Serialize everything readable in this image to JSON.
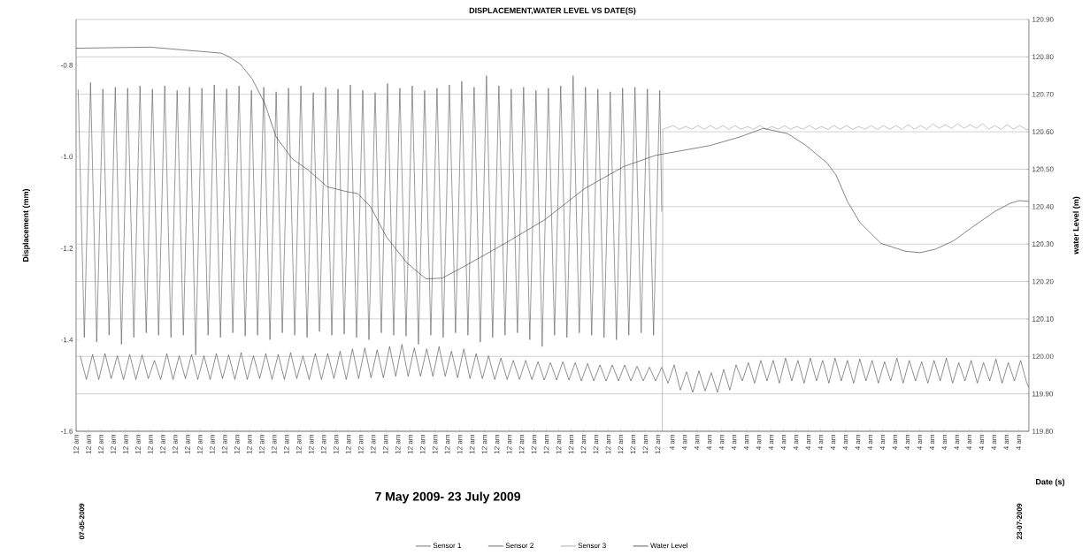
{
  "chart_data": {
    "type": "line",
    "title": "DISPLACEMENT,WATER LEVEL VS DATE(S)",
    "xlabel": "Date (s)",
    "ylabel": "Displacement (mm)",
    "y2label": "water Level (m)",
    "annotations": [
      "07-05-2009",
      "7 May 2009- 23 July 2009",
      "23-07-2009"
    ],
    "xlim": [
      "2009-05-07T00:00",
      "2009-07-23T00:00"
    ],
    "xticks": [
      {
        "value": "2009-05-07T00:00",
        "label": "12 am"
      },
      {
        "value": "2009-05-08T00:00",
        "label": "12 am"
      },
      {
        "value": "2009-05-09T00:00",
        "label": "12 am"
      },
      {
        "value": "2009-05-10T00:00",
        "label": "12 am"
      },
      {
        "value": "2009-05-11T00:00",
        "label": "12 am"
      },
      {
        "value": "2009-05-12T00:00",
        "label": "12 am"
      },
      {
        "value": "2009-05-13T00:00",
        "label": "12 am"
      },
      {
        "value": "2009-05-14T00:00",
        "label": "12 am"
      },
      {
        "value": "2009-05-15T00:00",
        "label": "12 am"
      },
      {
        "value": "2009-05-16T00:00",
        "label": "12 am"
      },
      {
        "value": "2009-05-17T00:00",
        "label": "12 am"
      },
      {
        "value": "2009-05-18T00:00",
        "label": "12 am"
      },
      {
        "value": "2009-05-19T00:00",
        "label": "12 am"
      },
      {
        "value": "2009-05-20T00:00",
        "label": "12 am"
      },
      {
        "value": "2009-05-21T00:00",
        "label": "12 am"
      },
      {
        "value": "2009-05-22T00:00",
        "label": "12 am"
      },
      {
        "value": "2009-05-23T00:00",
        "label": "12 am"
      },
      {
        "value": "2009-05-24T00:00",
        "label": "12 am"
      },
      {
        "value": "2009-05-25T00:00",
        "label": "12 am"
      },
      {
        "value": "2009-05-26T00:00",
        "label": "12 am"
      },
      {
        "value": "2009-05-27T00:00",
        "label": "12 am"
      },
      {
        "value": "2009-05-28T00:00",
        "label": "12 am"
      },
      {
        "value": "2009-05-29T00:00",
        "label": "12 am"
      },
      {
        "value": "2009-05-30T00:00",
        "label": "12 am"
      },
      {
        "value": "2009-05-31T00:00",
        "label": "12 am"
      },
      {
        "value": "2009-06-01T00:00",
        "label": "12 am"
      },
      {
        "value": "2009-06-02T00:00",
        "label": "12 am"
      },
      {
        "value": "2009-06-03T00:00",
        "label": "12 am"
      },
      {
        "value": "2009-06-04T00:00",
        "label": "12 am"
      },
      {
        "value": "2009-06-05T00:00",
        "label": "12 am"
      },
      {
        "value": "2009-06-06T00:00",
        "label": "12 am"
      },
      {
        "value": "2009-06-07T00:00",
        "label": "12 am"
      },
      {
        "value": "2009-06-08T00:00",
        "label": "12 am"
      },
      {
        "value": "2009-06-09T00:00",
        "label": "12 am"
      },
      {
        "value": "2009-06-10T00:00",
        "label": "12 am"
      },
      {
        "value": "2009-06-11T00:00",
        "label": "12 am"
      },
      {
        "value": "2009-06-12T00:00",
        "label": "12 am"
      },
      {
        "value": "2009-06-13T00:00",
        "label": "12 am"
      },
      {
        "value": "2009-06-14T00:00",
        "label": "12 am"
      },
      {
        "value": "2009-06-15T00:00",
        "label": "12 am"
      },
      {
        "value": "2009-06-16T00:00",
        "label": "12 am"
      },
      {
        "value": "2009-06-17T00:00",
        "label": "12 am"
      },
      {
        "value": "2009-06-18T00:00",
        "label": "12 am"
      },
      {
        "value": "2009-06-19T00:00",
        "label": "12 am"
      },
      {
        "value": "2009-06-20T00:00",
        "label": "12 am"
      },
      {
        "value": "2009-06-21T00:00",
        "label": "12 am"
      },
      {
        "value": "2009-06-22T00:00",
        "label": "12 am"
      },
      {
        "value": "2009-06-23T00:00",
        "label": "12 am"
      },
      {
        "value": "2009-06-24T04:00",
        "label": "4 am"
      },
      {
        "value": "2009-06-25T04:00",
        "label": "4 am"
      },
      {
        "value": "2009-06-26T04:00",
        "label": "4 am"
      },
      {
        "value": "2009-06-27T04:00",
        "label": "4 am"
      },
      {
        "value": "2009-06-28T04:00",
        "label": "4 am"
      },
      {
        "value": "2009-06-29T04:00",
        "label": "4 am"
      },
      {
        "value": "2009-06-30T04:00",
        "label": "4 am"
      },
      {
        "value": "2009-07-01T04:00",
        "label": "4 am"
      },
      {
        "value": "2009-07-02T04:00",
        "label": "4 am"
      },
      {
        "value": "2009-07-03T04:00",
        "label": "4 am"
      },
      {
        "value": "2009-07-04T04:00",
        "label": "4 am"
      },
      {
        "value": "2009-07-05T04:00",
        "label": "4 am"
      },
      {
        "value": "2009-07-06T04:00",
        "label": "4 am"
      },
      {
        "value": "2009-07-07T04:00",
        "label": "4 am"
      },
      {
        "value": "2009-07-08T04:00",
        "label": "4 am"
      },
      {
        "value": "2009-07-09T04:00",
        "label": "4 am"
      },
      {
        "value": "2009-07-10T04:00",
        "label": "4 am"
      },
      {
        "value": "2009-07-11T04:00",
        "label": "4 am"
      },
      {
        "value": "2009-07-12T04:00",
        "label": "4 am"
      },
      {
        "value": "2009-07-13T04:00",
        "label": "4 am"
      },
      {
        "value": "2009-07-14T04:00",
        "label": "4 am"
      },
      {
        "value": "2009-07-15T04:00",
        "label": "4 am"
      },
      {
        "value": "2009-07-16T04:00",
        "label": "4 am"
      },
      {
        "value": "2009-07-17T04:00",
        "label": "4 am"
      },
      {
        "value": "2009-07-18T04:00",
        "label": "4 am"
      },
      {
        "value": "2009-07-19T04:00",
        "label": "4 am"
      },
      {
        "value": "2009-07-20T04:00",
        "label": "4 am"
      },
      {
        "value": "2009-07-21T04:00",
        "label": "4 am"
      },
      {
        "value": "2009-07-22T04:00",
        "label": "4 am"
      }
    ],
    "ylim": [
      -1.6,
      -0.7
    ],
    "yticks": [
      -0.8,
      {
        "value": -1.0,
        "label": "-1.0"
      },
      -1.2,
      -1.4,
      -1.6
    ],
    "y2lim": [
      119.8,
      120.9
    ],
    "y2ticks": [
      {
        "value": 119.8,
        "label": "119.80"
      },
      {
        "value": 119.9,
        "label": "119.90"
      },
      {
        "value": 120.0,
        "label": "120.00"
      },
      {
        "value": 120.1,
        "label": "120.10"
      },
      {
        "value": 120.2,
        "label": "120.20"
      },
      {
        "value": 120.3,
        "label": "120.30"
      },
      {
        "value": 120.4,
        "label": "120.40"
      },
      {
        "value": 120.5,
        "label": "120.50"
      },
      {
        "value": 120.6,
        "label": "120.60"
      },
      {
        "value": 120.7,
        "label": "120.70"
      },
      {
        "value": 120.8,
        "label": "120.80"
      },
      {
        "value": 120.9,
        "label": "120.90"
      }
    ],
    "grid": "y2",
    "legend": "bottom",
    "marker": "none",
    "line_style": "solid",
    "series": [
      {
        "name": "Sensor 1",
        "color": "#555555",
        "x": [
          "2009-05-07T04:00",
          "2009-05-07T16:00",
          "2009-05-08T04:00",
          "2009-05-08T16:00",
          "2009-05-09T04:00",
          "2009-05-09T16:00",
          "2009-05-10T04:00",
          "2009-05-10T16:00",
          "2009-05-11T04:00",
          "2009-05-11T16:00",
          "2009-05-12T04:00",
          "2009-05-12T16:00",
          "2009-05-13T04:00",
          "2009-05-13T16:00",
          "2009-05-14T04:00",
          "2009-05-14T16:00",
          "2009-05-15T04:00",
          "2009-05-15T16:00",
          "2009-05-16T04:00",
          "2009-05-16T16:00",
          "2009-05-17T04:00",
          "2009-05-17T16:00",
          "2009-05-18T04:00",
          "2009-05-18T16:00",
          "2009-05-19T04:00",
          "2009-05-19T16:00",
          "2009-05-20T04:00",
          "2009-05-20T16:00",
          "2009-05-21T04:00",
          "2009-05-21T16:00",
          "2009-05-22T04:00",
          "2009-05-22T16:00",
          "2009-05-23T04:00",
          "2009-05-23T16:00",
          "2009-05-24T04:00",
          "2009-05-24T16:00",
          "2009-05-25T04:00",
          "2009-05-25T16:00",
          "2009-05-26T04:00",
          "2009-05-26T16:00",
          "2009-05-27T04:00",
          "2009-05-27T16:00",
          "2009-05-28T04:00",
          "2009-05-28T16:00",
          "2009-05-29T04:00",
          "2009-05-29T16:00",
          "2009-05-30T04:00",
          "2009-05-30T16:00",
          "2009-05-31T04:00",
          "2009-05-31T16:00",
          "2009-06-01T04:00",
          "2009-06-01T16:00",
          "2009-06-02T04:00",
          "2009-06-02T16:00",
          "2009-06-03T04:00",
          "2009-06-03T16:00",
          "2009-06-04T04:00",
          "2009-06-04T16:00",
          "2009-06-05T04:00",
          "2009-06-05T16:00",
          "2009-06-06T04:00",
          "2009-06-06T16:00",
          "2009-06-07T04:00",
          "2009-06-07T16:00",
          "2009-06-08T04:00",
          "2009-06-08T16:00",
          "2009-06-09T04:00",
          "2009-06-09T16:00",
          "2009-06-10T04:00",
          "2009-06-10T16:00",
          "2009-06-11T04:00",
          "2009-06-11T16:00",
          "2009-06-12T04:00",
          "2009-06-12T16:00",
          "2009-06-13T04:00",
          "2009-06-13T16:00",
          "2009-06-14T04:00",
          "2009-06-14T16:00",
          "2009-06-15T04:00",
          "2009-06-15T16:00",
          "2009-06-16T04:00",
          "2009-06-16T16:00",
          "2009-06-17T04:00",
          "2009-06-17T16:00",
          "2009-06-18T04:00",
          "2009-06-18T16:00",
          "2009-06-19T04:00",
          "2009-06-19T16:00",
          "2009-06-20T04:00",
          "2009-06-20T16:00",
          "2009-06-21T04:00",
          "2009-06-21T16:00",
          "2009-06-22T04:00",
          "2009-06-22T16:00",
          "2009-06-23T04:00",
          "2009-06-23T08:00"
        ],
        "values": [
          -0.853,
          -1.395,
          -0.838,
          -1.405,
          -0.852,
          -1.39,
          -0.848,
          -1.41,
          -0.85,
          -1.395,
          -0.845,
          -1.385,
          -0.852,
          -1.39,
          -0.845,
          -1.395,
          -0.855,
          -1.39,
          -0.848,
          -1.433,
          -0.85,
          -1.39,
          -0.843,
          -1.395,
          -0.852,
          -1.385,
          -0.845,
          -1.392,
          -0.855,
          -1.39,
          -0.848,
          -1.4,
          -0.858,
          -1.385,
          -0.85,
          -1.39,
          -0.845,
          -1.395,
          -0.86,
          -1.382,
          -0.848,
          -1.39,
          -0.852,
          -1.388,
          -0.843,
          -1.395,
          -0.855,
          -1.4,
          -0.86,
          -1.385,
          -0.84,
          -1.39,
          -0.85,
          -1.392,
          -0.845,
          -1.41,
          -0.855,
          -1.39,
          -0.85,
          -1.395,
          -0.843,
          -1.385,
          -0.835,
          -1.39,
          -0.848,
          -1.405,
          -0.823,
          -1.395,
          -0.845,
          -1.39,
          -0.852,
          -1.385,
          -0.848,
          -1.4,
          -0.855,
          -1.415,
          -0.85,
          -1.39,
          -0.845,
          -1.395,
          -0.823,
          -1.385,
          -0.848,
          -1.39,
          -0.852,
          -1.395,
          -0.858,
          -1.4,
          -0.85,
          -1.39,
          -0.848,
          -1.385,
          -0.852,
          -1.39,
          -0.855,
          -1.12
        ]
      },
      {
        "name": "Sensor 2",
        "color": "#444444",
        "x": [
          "2009-05-07T08:00",
          "2009-05-07T20:00",
          "2009-05-08T08:00",
          "2009-05-08T20:00",
          "2009-05-09T08:00",
          "2009-05-09T20:00",
          "2009-05-10T08:00",
          "2009-05-10T20:00",
          "2009-05-11T08:00",
          "2009-05-11T20:00",
          "2009-05-12T08:00",
          "2009-05-12T20:00",
          "2009-05-13T08:00",
          "2009-05-13T20:00",
          "2009-05-14T08:00",
          "2009-05-14T20:00",
          "2009-05-15T08:00",
          "2009-05-15T20:00",
          "2009-05-16T08:00",
          "2009-05-16T20:00",
          "2009-05-17T08:00",
          "2009-05-17T20:00",
          "2009-05-18T08:00",
          "2009-05-18T20:00",
          "2009-05-19T08:00",
          "2009-05-19T20:00",
          "2009-05-20T08:00",
          "2009-05-20T20:00",
          "2009-05-21T08:00",
          "2009-05-21T20:00",
          "2009-05-22T08:00",
          "2009-05-22T20:00",
          "2009-05-23T08:00",
          "2009-05-23T20:00",
          "2009-05-24T08:00",
          "2009-05-24T20:00",
          "2009-05-25T08:00",
          "2009-05-25T20:00",
          "2009-05-26T08:00",
          "2009-05-26T20:00",
          "2009-05-27T08:00",
          "2009-05-27T20:00",
          "2009-05-28T08:00",
          "2009-05-28T20:00",
          "2009-05-29T08:00",
          "2009-05-29T20:00",
          "2009-05-30T08:00",
          "2009-05-30T20:00",
          "2009-05-31T08:00",
          "2009-05-31T20:00",
          "2009-06-01T08:00",
          "2009-06-01T20:00",
          "2009-06-02T08:00",
          "2009-06-02T20:00",
          "2009-06-03T08:00",
          "2009-06-03T20:00",
          "2009-06-04T08:00",
          "2009-06-04T20:00",
          "2009-06-05T08:00",
          "2009-06-05T20:00",
          "2009-06-06T08:00",
          "2009-06-06T20:00",
          "2009-06-07T08:00",
          "2009-06-07T20:00",
          "2009-06-08T08:00",
          "2009-06-08T20:00",
          "2009-06-09T08:00",
          "2009-06-09T20:00",
          "2009-06-10T08:00",
          "2009-06-10T20:00",
          "2009-06-11T08:00",
          "2009-06-11T20:00",
          "2009-06-12T08:00",
          "2009-06-12T20:00",
          "2009-06-13T08:00",
          "2009-06-13T20:00",
          "2009-06-14T08:00",
          "2009-06-14T20:00",
          "2009-06-15T08:00",
          "2009-06-15T20:00",
          "2009-06-16T08:00",
          "2009-06-16T20:00",
          "2009-06-17T08:00",
          "2009-06-17T20:00",
          "2009-06-18T08:00",
          "2009-06-18T20:00",
          "2009-06-19T08:00",
          "2009-06-19T20:00",
          "2009-06-20T08:00",
          "2009-06-20T20:00",
          "2009-06-21T08:00",
          "2009-06-21T20:00",
          "2009-06-22T08:00",
          "2009-06-22T20:00",
          "2009-06-23T08:00",
          "2009-06-23T20:00",
          "2009-06-24T08:00",
          "2009-06-24T20:00",
          "2009-06-25T08:00",
          "2009-06-25T20:00",
          "2009-06-26T08:00",
          "2009-06-26T20:00",
          "2009-06-27T08:00",
          "2009-06-27T20:00",
          "2009-06-28T08:00",
          "2009-06-28T20:00",
          "2009-06-29T08:00",
          "2009-06-29T20:00",
          "2009-06-30T08:00",
          "2009-06-30T20:00",
          "2009-07-01T08:00",
          "2009-07-01T20:00",
          "2009-07-02T08:00",
          "2009-07-02T20:00",
          "2009-07-03T08:00",
          "2009-07-03T20:00",
          "2009-07-04T08:00",
          "2009-07-04T20:00",
          "2009-07-05T08:00",
          "2009-07-05T20:00",
          "2009-07-06T08:00",
          "2009-07-06T20:00",
          "2009-07-07T08:00",
          "2009-07-07T20:00",
          "2009-07-08T08:00",
          "2009-07-08T20:00",
          "2009-07-09T08:00",
          "2009-07-09T20:00",
          "2009-07-10T08:00",
          "2009-07-10T20:00",
          "2009-07-11T08:00",
          "2009-07-11T20:00",
          "2009-07-12T08:00",
          "2009-07-12T20:00",
          "2009-07-13T08:00",
          "2009-07-13T20:00",
          "2009-07-14T08:00",
          "2009-07-14T20:00",
          "2009-07-15T08:00",
          "2009-07-15T20:00",
          "2009-07-16T08:00",
          "2009-07-16T20:00",
          "2009-07-17T08:00",
          "2009-07-17T20:00",
          "2009-07-18T08:00",
          "2009-07-18T20:00",
          "2009-07-19T08:00",
          "2009-07-19T20:00",
          "2009-07-20T08:00",
          "2009-07-20T20:00",
          "2009-07-21T08:00",
          "2009-07-21T20:00",
          "2009-07-22T08:00",
          "2009-07-22T20:00",
          "2009-07-23T00:00"
        ],
        "values": [
          -1.435,
          -1.487,
          -1.432,
          -1.487,
          -1.43,
          -1.485,
          -1.435,
          -1.487,
          -1.432,
          -1.487,
          -1.433,
          -1.485,
          -1.445,
          -1.487,
          -1.43,
          -1.487,
          -1.435,
          -1.485,
          -1.432,
          -1.487,
          -1.435,
          -1.487,
          -1.43,
          -1.485,
          -1.433,
          -1.487,
          -1.428,
          -1.487,
          -1.435,
          -1.485,
          -1.43,
          -1.487,
          -1.432,
          -1.487,
          -1.428,
          -1.485,
          -1.435,
          -1.487,
          -1.43,
          -1.487,
          -1.43,
          -1.485,
          -1.425,
          -1.487,
          -1.42,
          -1.485,
          -1.418,
          -1.483,
          -1.422,
          -1.483,
          -1.415,
          -1.48,
          -1.41,
          -1.48,
          -1.418,
          -1.48,
          -1.42,
          -1.48,
          -1.415,
          -1.48,
          -1.425,
          -1.483,
          -1.42,
          -1.485,
          -1.43,
          -1.485,
          -1.435,
          -1.487,
          -1.44,
          -1.487,
          -1.445,
          -1.487,
          -1.445,
          -1.487,
          -1.448,
          -1.488,
          -1.45,
          -1.488,
          -1.448,
          -1.488,
          -1.45,
          -1.49,
          -1.452,
          -1.49,
          -1.455,
          -1.49,
          -1.455,
          -1.49,
          -1.455,
          -1.49,
          -1.458,
          -1.49,
          -1.46,
          -1.49,
          -1.46,
          -1.495,
          -1.455,
          -1.51,
          -1.47,
          -1.515,
          -1.468,
          -1.512,
          -1.472,
          -1.515,
          -1.465,
          -1.51,
          -1.455,
          -1.49,
          -1.45,
          -1.495,
          -1.445,
          -1.49,
          -1.445,
          -1.495,
          -1.44,
          -1.49,
          -1.445,
          -1.495,
          -1.44,
          -1.49,
          -1.445,
          -1.495,
          -1.44,
          -1.49,
          -1.445,
          -1.495,
          -1.442,
          -1.49,
          -1.445,
          -1.495,
          -1.448,
          -1.49,
          -1.44,
          -1.495,
          -1.445,
          -1.49,
          -1.448,
          -1.495,
          -1.445,
          -1.49,
          -1.44,
          -1.495,
          -1.45,
          -1.49,
          -1.445,
          -1.495,
          -1.45,
          -1.49,
          -1.442,
          -1.495,
          -1.45,
          -1.49,
          -1.445,
          -1.495,
          -1.504
        ]
      },
      {
        "name": "Sensor 3",
        "color": "#999999",
        "x": [
          "2009-06-23T09:00",
          "2009-06-23T10:00",
          "2009-06-24T06:00",
          "2009-06-24T18:00",
          "2009-06-25T06:00",
          "2009-06-25T18:00",
          "2009-06-26T06:00",
          "2009-06-26T18:00",
          "2009-06-27T06:00",
          "2009-06-27T18:00",
          "2009-06-28T06:00",
          "2009-06-28T18:00",
          "2009-06-29T06:00",
          "2009-06-29T18:00",
          "2009-06-30T06:00",
          "2009-06-30T18:00",
          "2009-07-01T06:00",
          "2009-07-01T18:00",
          "2009-07-02T06:00",
          "2009-07-02T18:00",
          "2009-07-03T06:00",
          "2009-07-03T18:00",
          "2009-07-04T06:00",
          "2009-07-04T18:00",
          "2009-07-05T06:00",
          "2009-07-05T18:00",
          "2009-07-06T06:00",
          "2009-07-06T18:00",
          "2009-07-07T06:00",
          "2009-07-07T18:00",
          "2009-07-08T06:00",
          "2009-07-08T18:00",
          "2009-07-09T06:00",
          "2009-07-09T18:00",
          "2009-07-10T06:00",
          "2009-07-10T18:00",
          "2009-07-11T06:00",
          "2009-07-11T18:00",
          "2009-07-12T06:00",
          "2009-07-12T18:00",
          "2009-07-13T06:00",
          "2009-07-13T18:00",
          "2009-07-14T06:00",
          "2009-07-14T18:00",
          "2009-07-15T06:00",
          "2009-07-15T18:00",
          "2009-07-16T06:00",
          "2009-07-16T18:00",
          "2009-07-17T06:00",
          "2009-07-17T18:00",
          "2009-07-18T06:00",
          "2009-07-18T18:00",
          "2009-07-19T06:00",
          "2009-07-19T18:00",
          "2009-07-20T06:00",
          "2009-07-20T18:00",
          "2009-07-21T06:00",
          "2009-07-21T18:00",
          "2009-07-22T06:00",
          "2009-07-22T18:00",
          "2009-07-23T00:00"
        ],
        "values": [
          -1.6,
          -0.94,
          -0.932,
          -0.94,
          -0.934,
          -0.94,
          -0.932,
          -0.94,
          -0.932,
          -0.94,
          -0.932,
          -0.94,
          -0.932,
          -0.94,
          -0.934,
          -0.94,
          -0.932,
          -0.94,
          -0.934,
          -0.94,
          -0.932,
          -0.94,
          -0.934,
          -0.94,
          -0.932,
          -0.94,
          -0.934,
          -0.94,
          -0.932,
          -0.94,
          -0.932,
          -0.94,
          -0.934,
          -0.94,
          -0.932,
          -0.94,
          -0.932,
          -0.94,
          -0.932,
          -0.94,
          -0.93,
          -0.94,
          -0.932,
          -0.94,
          -0.928,
          -0.938,
          -0.93,
          -0.938,
          -0.928,
          -0.938,
          -0.93,
          -0.938,
          -0.928,
          -0.94,
          -0.932,
          -0.94,
          -0.93,
          -0.94,
          -0.932,
          -0.94,
          -0.94
        ]
      },
      {
        "name": "Water Level",
        "color": "#333333",
        "axis": "y2",
        "x": [
          "2009-05-07T00:00",
          "2009-05-13T00:00",
          "2009-05-18T17:00",
          "2009-05-19T09:00",
          "2009-05-20T07:00",
          "2009-05-21T06:00",
          "2009-05-22T06:00",
          "2009-05-23T04:00",
          "2009-05-24T11:00",
          "2009-05-25T18:00",
          "2009-05-27T07:00",
          "2009-05-28T21:00",
          "2009-05-29T18:00",
          "2009-05-30T19:00",
          "2009-06-01T02:00",
          "2009-06-02T18:00",
          "2009-06-04T07:00",
          "2009-06-05T14:00",
          "2009-06-07T11:00",
          "2009-06-10T16:00",
          "2009-06-13T21:00",
          "2009-06-17T01:00",
          "2009-06-20T06:00",
          "2009-06-22T20:00",
          "2009-06-23T08:00",
          "2009-06-27T05:00",
          "2009-06-29T15:00",
          "2009-07-01T13:00",
          "2009-07-03T12:00",
          "2009-07-05T00:00",
          "2009-07-06T17:00",
          "2009-07-07T10:00",
          "2009-07-08T08:00",
          "2009-07-09T08:00",
          "2009-07-11T01:00",
          "2009-07-13T00:00",
          "2009-07-14T05:00",
          "2009-07-15T10:00",
          "2009-07-16T22:00",
          "2009-07-18T14:00",
          "2009-07-20T07:00",
          "2009-07-21T12:00",
          "2009-07-22T05:00",
          "2009-07-23T00:00"
        ],
        "values": [
          120.823,
          120.826,
          120.81,
          120.8,
          120.78,
          120.74,
          120.675,
          120.586,
          120.528,
          120.498,
          120.453,
          120.44,
          120.435,
          120.4,
          120.319,
          120.249,
          120.207,
          120.209,
          120.242,
          120.302,
          120.365,
          120.447,
          120.507,
          120.537,
          120.54,
          120.563,
          120.586,
          120.609,
          120.595,
          120.563,
          120.516,
          120.484,
          120.414,
          120.358,
          120.302,
          120.281,
          120.277,
          120.286,
          120.309,
          120.349,
          120.388,
          120.409,
          120.416,
          120.414
        ]
      }
    ]
  }
}
